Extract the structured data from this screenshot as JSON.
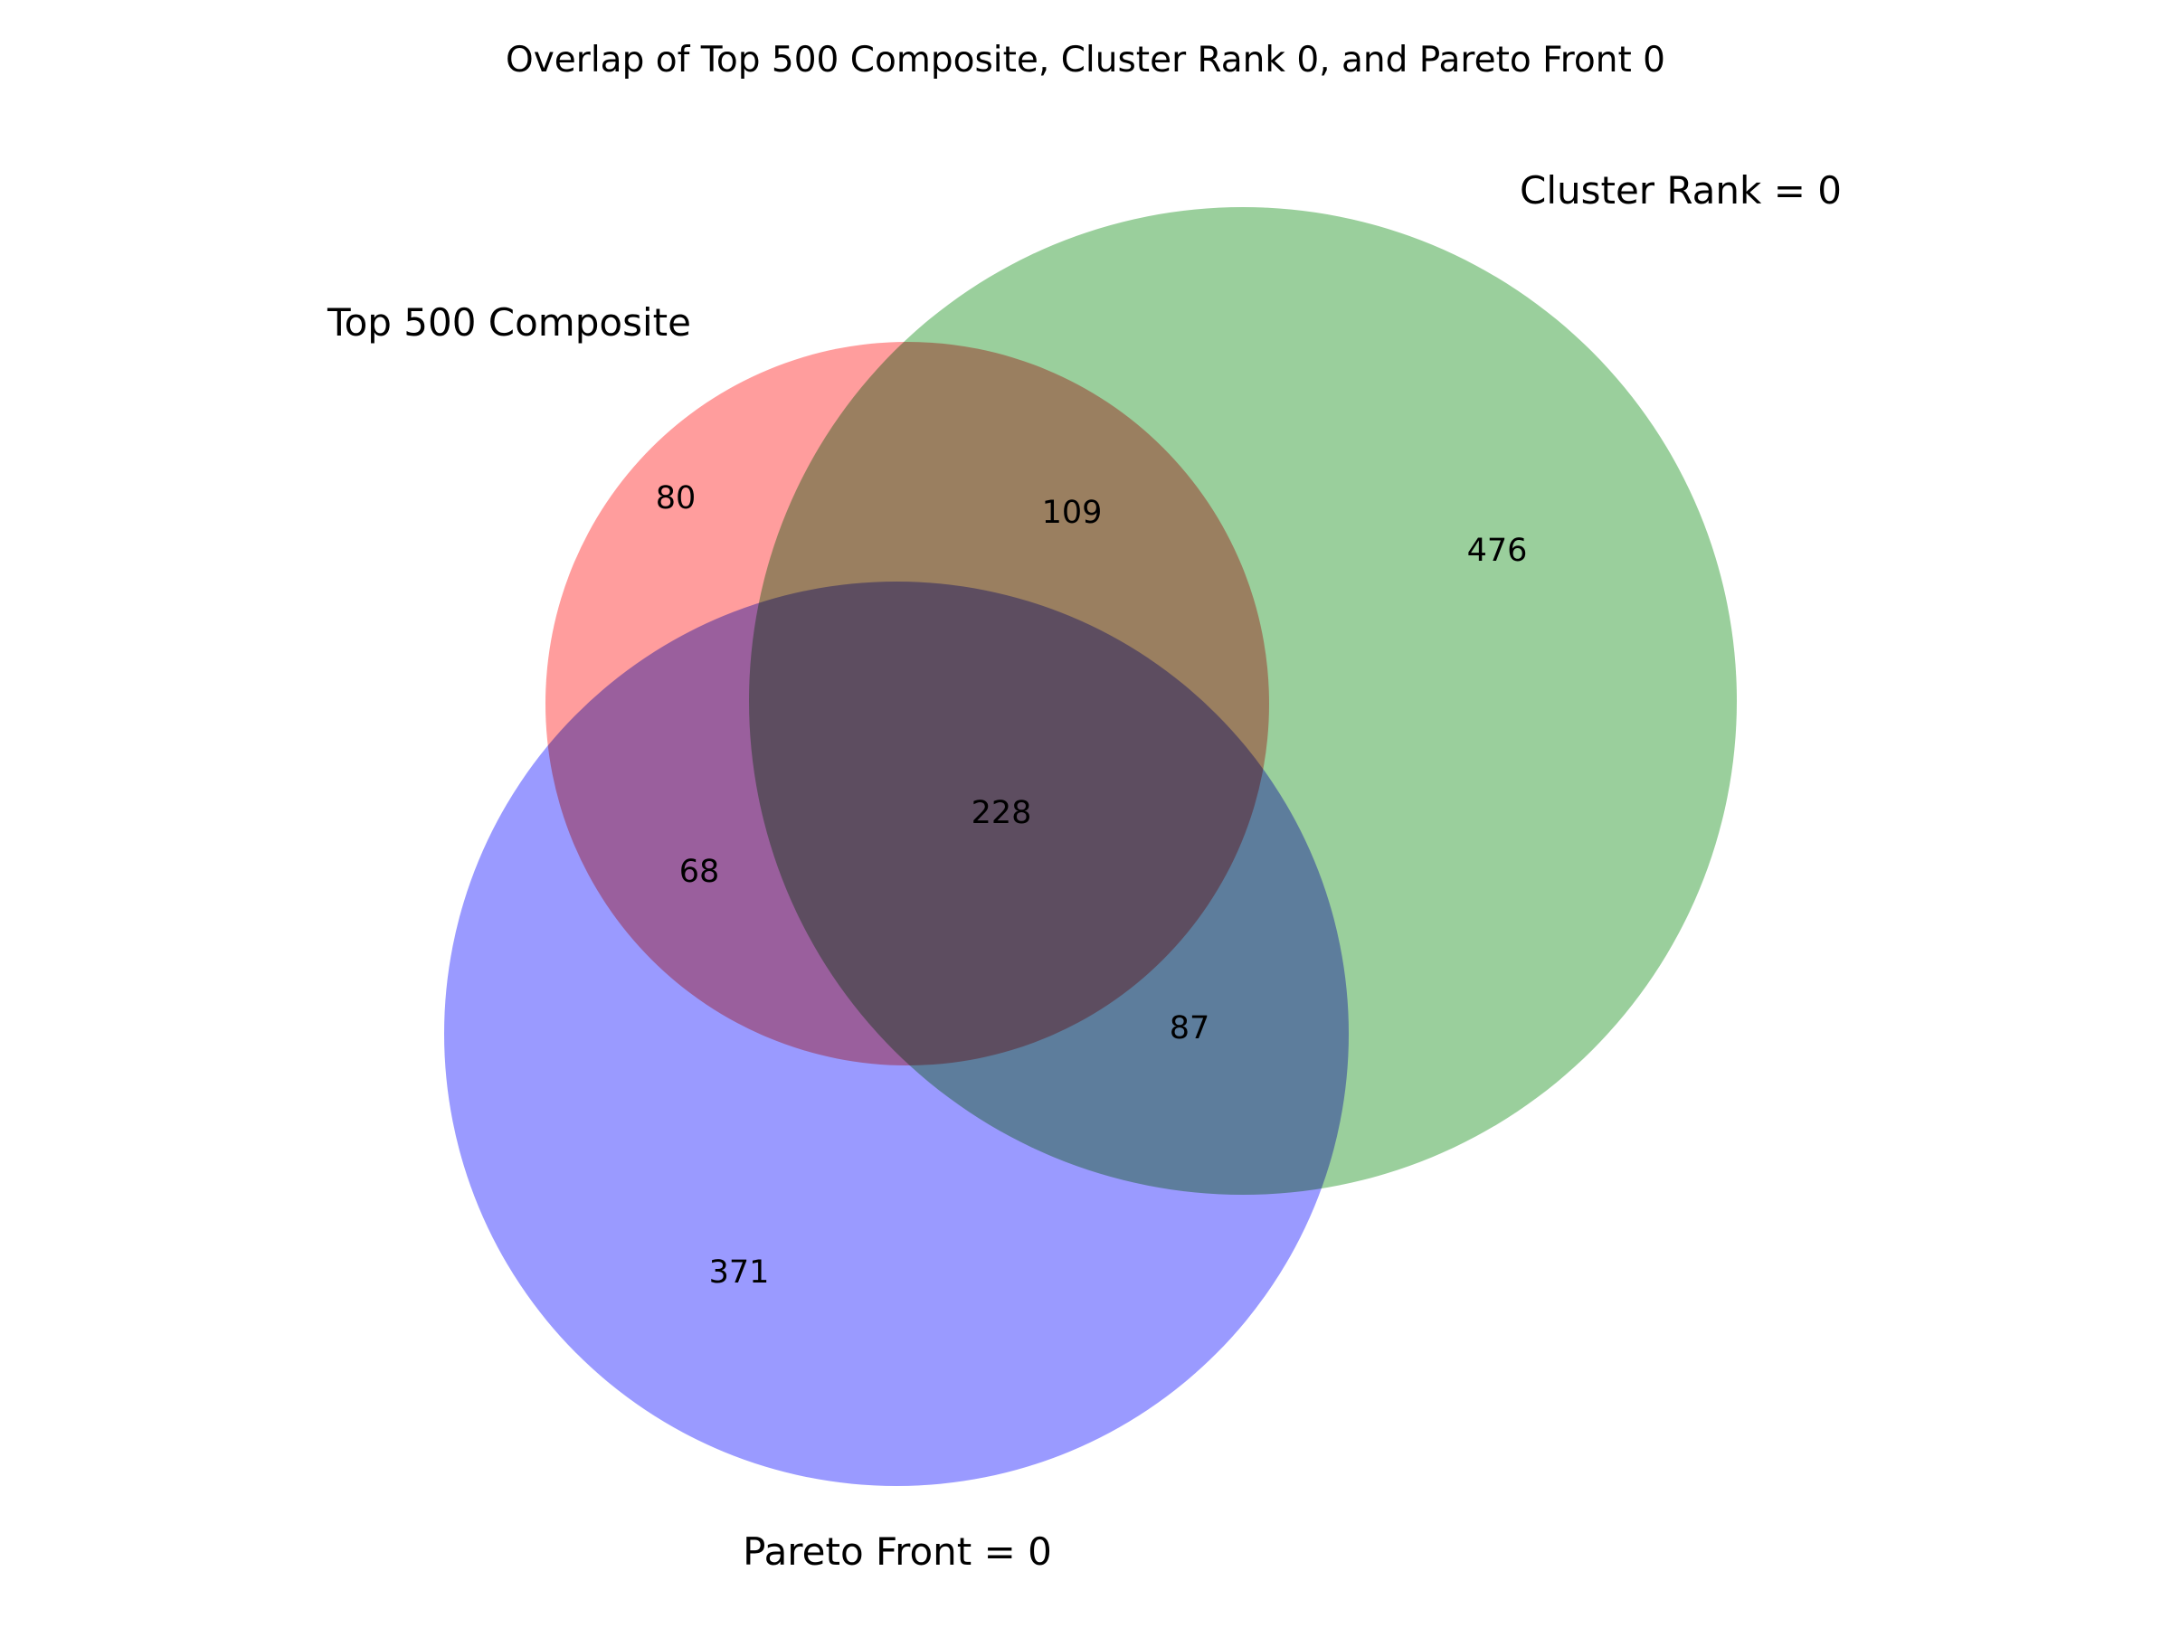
{
  "title": "Overlap of Top 500 Composite, Cluster Rank 0, and Pareto Front 0",
  "sets": [
    {
      "id": "top500",
      "label": "Top 500 Composite",
      "color": "#ff3b3b"
    },
    {
      "id": "cluster",
      "label": "Cluster Rank = 0",
      "color": "#35a03a"
    },
    {
      "id": "pareto",
      "label": "Pareto Front = 0",
      "color": "#3535ff"
    }
  ],
  "regions": {
    "top500_only": "80",
    "cluster_only": "476",
    "pareto_only": "371",
    "top500_cluster": "109",
    "top500_pareto": "68",
    "cluster_pareto": "87",
    "all_three": "228"
  }
}
